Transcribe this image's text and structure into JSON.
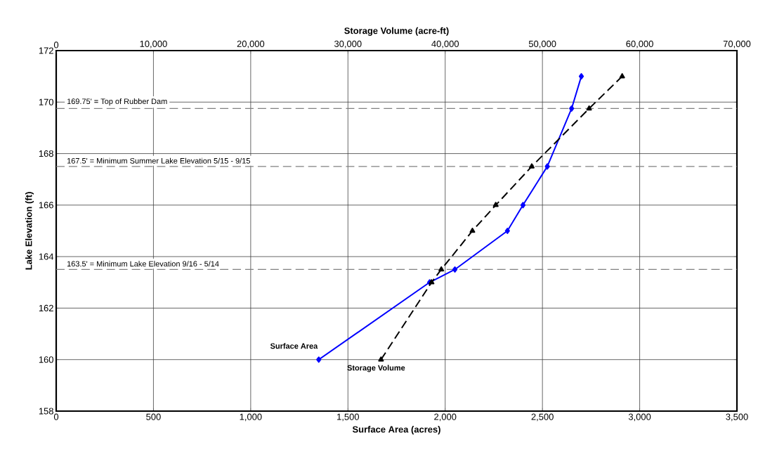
{
  "chart_data": {
    "type": "line",
    "xlabel": "Surface Area (acres)",
    "x2label": "Storage Volume (acre-ft)",
    "ylabel": "Lake Elevation (ft)",
    "xlim": [
      0,
      3500
    ],
    "xticks": [
      0,
      500,
      {
        "value": 1000,
        "label": "1,000"
      },
      {
        "value": 1500,
        "label": "1,500"
      },
      {
        "value": 2000,
        "label": "2,000"
      },
      {
        "value": 2500,
        "label": "2,500"
      },
      {
        "value": 3000,
        "label": "3,000"
      },
      {
        "value": 3500,
        "label": "3,500"
      }
    ],
    "x2lim": [
      0,
      70000
    ],
    "x2ticks": [
      0,
      {
        "value": 10000,
        "label": "10,000"
      },
      {
        "value": 20000,
        "label": "20,000"
      },
      {
        "value": 30000,
        "label": "30,000"
      },
      {
        "value": 40000,
        "label": "40,000"
      },
      {
        "value": 50000,
        "label": "50,000"
      },
      {
        "value": 60000,
        "label": "60,000"
      },
      {
        "value": 70000,
        "label": "70,000"
      }
    ],
    "ylim": [
      158,
      172
    ],
    "yticks": [
      158,
      160,
      162,
      164,
      166,
      168,
      170,
      172
    ],
    "grid": true,
    "legend": false,
    "series": [
      {
        "name": "Surface Area",
        "color": "#0000ff",
        "marker": "diamond",
        "line_style": "solid",
        "x": [
          1350,
          1920,
          2050,
          2320,
          2400,
          2525,
          2650,
          2700
        ],
        "values": [
          160,
          163,
          163.5,
          165,
          166,
          167.5,
          169.75,
          171
        ]
      },
      {
        "name": "Storage Volume",
        "color": "#000000",
        "marker": "triangle",
        "line_style": "dashed",
        "axis": "x2",
        "x": [
          33400,
          38600,
          39600,
          42800,
          45200,
          48900,
          54800,
          58200
        ],
        "values": [
          160,
          163,
          163.5,
          165,
          166,
          167.5,
          169.75,
          171
        ]
      }
    ],
    "ref_lines": [
      {
        "axis": "y",
        "value": 169.75,
        "label": "169.75' = Top of Rubber Dam",
        "color": "#808080",
        "line_style": "dashed"
      },
      {
        "axis": "y",
        "value": 167.5,
        "label": "167.5' = Minimum Summer Lake Elevation 5/15 - 9/15",
        "color": "#808080",
        "line_style": "dashed"
      },
      {
        "axis": "y",
        "value": 163.5,
        "label": "163.5' = Minimum Lake Elevation 9/16 - 5/14",
        "color": "#808080",
        "line_style": "dashed"
      }
    ]
  }
}
